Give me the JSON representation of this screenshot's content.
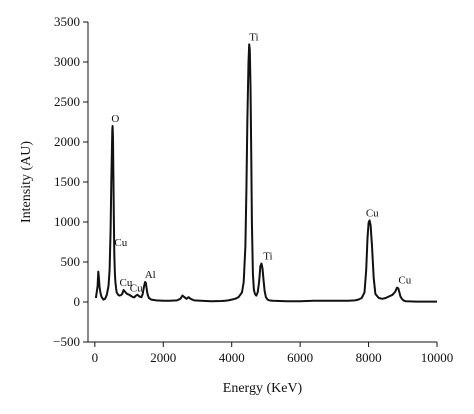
{
  "chart_data": {
    "type": "line",
    "title": "",
    "xlabel": "Energy (KeV)",
    "ylabel": "Intensity (AU)",
    "xlim": [
      -200,
      10000
    ],
    "ylim": [
      -500,
      3500
    ],
    "grid": false,
    "x_ticks": [
      0,
      2000,
      4000,
      6000,
      8000,
      10000
    ],
    "y_ticks": [
      -500,
      0,
      500,
      1000,
      1500,
      2000,
      2500,
      3000,
      3500
    ],
    "series": [
      {
        "color": "#111111",
        "x": [
          30,
          80,
          100,
          120,
          140,
          170,
          200,
          250,
          300,
          350,
          400,
          430,
          460,
          480,
          500,
          510,
          520,
          530,
          540,
          555,
          570,
          585,
          600,
          620,
          640,
          680,
          720,
          760,
          800,
          840,
          880,
          920,
          950,
          980,
          1010,
          1040,
          1080,
          1120,
          1160,
          1200,
          1250,
          1300,
          1360,
          1400,
          1440,
          1470,
          1490,
          1510,
          1540,
          1580,
          1650,
          1800,
          2000,
          2200,
          2400,
          2500,
          2560,
          2620,
          2680,
          2740,
          2800,
          2900,
          3100,
          3400,
          3700,
          3800,
          3900,
          4000,
          4100,
          4200,
          4300,
          4350,
          4400,
          4430,
          4460,
          4490,
          4510,
          4530,
          4550,
          4570,
          4590,
          4620,
          4650,
          4680,
          4720,
          4760,
          4800,
          4840,
          4870,
          4900,
          4930,
          4960,
          5000,
          5050,
          5100,
          5200,
          5400,
          5600,
          5800,
          6000,
          6200,
          6400,
          6600,
          6800,
          7000,
          7200,
          7400,
          7600,
          7700,
          7800,
          7880,
          7930,
          7970,
          8000,
          8030,
          8060,
          8100,
          8150,
          8200,
          8300,
          8400,
          8500,
          8600,
          8700,
          8780,
          8830,
          8870,
          8900,
          8930,
          8970,
          9020,
          9080,
          9200,
          9400,
          9600,
          9800,
          10000
        ],
        "y": [
          50,
          200,
          380,
          300,
          180,
          100,
          60,
          30,
          40,
          90,
          200,
          400,
          900,
          1500,
          1950,
          2150,
          2200,
          2050,
          1700,
          1100,
          600,
          350,
          250,
          170,
          120,
          90,
          80,
          85,
          100,
          150,
          130,
          110,
          100,
          95,
          90,
          80,
          70,
          60,
          60,
          80,
          90,
          70,
          60,
          100,
          200,
          250,
          240,
          180,
          100,
          50,
          30,
          20,
          15,
          15,
          20,
          40,
          80,
          60,
          40,
          60,
          40,
          20,
          15,
          10,
          12,
          15,
          20,
          30,
          40,
          60,
          120,
          250,
          700,
          1400,
          2300,
          3000,
          3220,
          3150,
          2700,
          1900,
          1000,
          350,
          150,
          100,
          80,
          120,
          250,
          450,
          480,
          420,
          280,
          140,
          60,
          30,
          20,
          15,
          12,
          10,
          10,
          10,
          12,
          15,
          15,
          15,
          15,
          15,
          15,
          20,
          30,
          50,
          120,
          400,
          800,
          990,
          1020,
          960,
          700,
          300,
          100,
          50,
          40,
          50,
          70,
          90,
          130,
          180,
          170,
          120,
          70,
          40,
          20,
          10,
          8,
          5,
          5,
          5,
          5
        ]
      }
    ],
    "annotations": [
      {
        "text": "O",
        "x": 540,
        "y": 2200
      },
      {
        "text": "Cu",
        "x": 700,
        "y": 650
      },
      {
        "text": "Cu",
        "x": 850,
        "y": 150
      },
      {
        "text": "Cu",
        "x": 1150,
        "y": 80
      },
      {
        "text": "Al",
        "x": 1560,
        "y": 250
      },
      {
        "text": "Ti",
        "x": 4590,
        "y": 3220
      },
      {
        "text": "Ti",
        "x": 5000,
        "y": 480
      },
      {
        "text": "Cu",
        "x": 8050,
        "y": 1020
      },
      {
        "text": "Cu",
        "x": 9000,
        "y": 180
      }
    ]
  }
}
